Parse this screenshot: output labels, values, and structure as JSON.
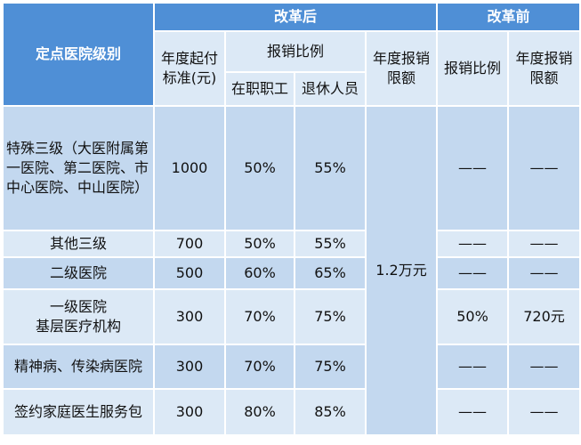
{
  "header": {
    "after_reform": "改革后",
    "before_reform": "改革前",
    "level": "定点医院级别",
    "deductible": "年度起付标准(元)",
    "reimburse_ratio": "报销比例",
    "employed": "在职职工",
    "retired": "退休人员",
    "annual_limit": "年度报销限额",
    "before_ratio": "报销比例",
    "before_limit": "年度报销限额"
  },
  "merged_limit": "1.2万元",
  "rows": [
    {
      "level": "特殊三级（大医附属第一医院、第二医院、市中心医院、中山医院）",
      "deductible": "1000",
      "employed": "50%",
      "retired": "55%",
      "before_ratio": "——",
      "before_limit": "——"
    },
    {
      "level": "其他三级",
      "deductible": "700",
      "employed": "50%",
      "retired": "55%",
      "before_ratio": "——",
      "before_limit": "——"
    },
    {
      "level": "二级医院",
      "deductible": "500",
      "employed": "60%",
      "retired": "65%",
      "before_ratio": "——",
      "before_limit": "——"
    },
    {
      "level": "一级医院\n基层医疗机构",
      "deductible": "300",
      "employed": "70%",
      "retired": "75%",
      "before_ratio": "50%",
      "before_limit": "720元"
    },
    {
      "level": "精神病、传染病医院",
      "deductible": "300",
      "employed": "70%",
      "retired": "75%",
      "before_ratio": "——",
      "before_limit": "——"
    },
    {
      "level": "签约家庭医生服务包",
      "deductible": "300",
      "employed": "80%",
      "retired": "85%",
      "before_ratio": "——",
      "before_limit": "——"
    }
  ]
}
